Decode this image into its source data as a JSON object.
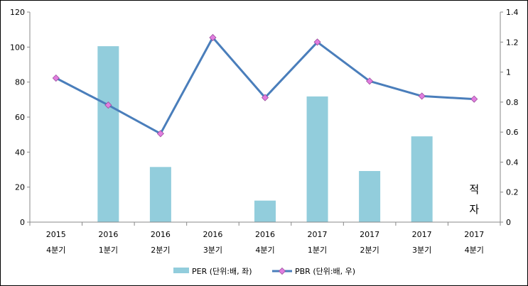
{
  "chart_data": {
    "type": "bar+line",
    "categories": [
      [
        "2015",
        "4분기"
      ],
      [
        "2016",
        "1분기"
      ],
      [
        "2016",
        "2분기"
      ],
      [
        "2016",
        "3분기"
      ],
      [
        "2016",
        "4분기"
      ],
      [
        "2017",
        "1분기"
      ],
      [
        "2017",
        "2분기"
      ],
      [
        "2017",
        "3분기"
      ],
      [
        "2017",
        "4분기"
      ]
    ],
    "series": [
      {
        "name": "PER (단위:배, 좌)",
        "type": "bar",
        "axis": "left",
        "color": "#92CDDC",
        "values": [
          null,
          100.5,
          31.5,
          null,
          12.3,
          71.8,
          29.2,
          49.0,
          null
        ]
      },
      {
        "name": "PBR (단위:배, 우)",
        "type": "line",
        "axis": "right",
        "color": "#4A7EBB",
        "marker_color": "#E17DE0",
        "values": [
          0.96,
          0.78,
          0.59,
          1.23,
          0.83,
          1.2,
          0.94,
          0.84,
          0.82
        ]
      }
    ],
    "y_left": {
      "min": 0,
      "max": 120,
      "step": 20,
      "ticks": [
        "0",
        "20",
        "40",
        "60",
        "80",
        "100",
        "120"
      ]
    },
    "y_right": {
      "min": 0,
      "max": 1.4,
      "step": 0.2,
      "ticks": [
        "0",
        "0.2",
        "0.4",
        "0.6",
        "0.8",
        "1",
        "1.2",
        "1.4"
      ]
    },
    "annotation": {
      "lines": [
        "적",
        "자"
      ]
    },
    "grid": false,
    "legend": "bottom"
  }
}
